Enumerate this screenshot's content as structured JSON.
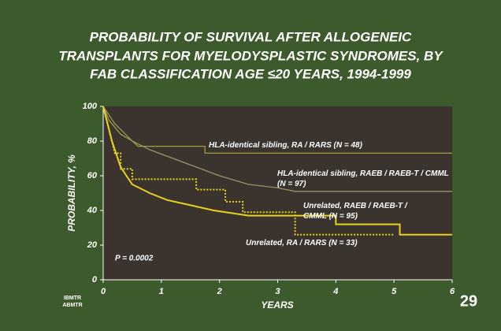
{
  "chart_data": {
    "type": "line",
    "title": [
      "PROBABILITY OF SURVIVAL AFTER ALLOGENEIC",
      "TRANSPLANTS FOR MYELODYSPLASTIC SYNDROMES, BY",
      "FAB CLASSIFICATION AGE ≤20 YEARS, 1994-1999"
    ],
    "x_label": "YEARS",
    "y_label": "PROBABILITY, %",
    "xlim": [
      0,
      6
    ],
    "xticks": [
      0,
      1,
      2,
      3,
      4,
      5,
      6
    ],
    "ylim": [
      0,
      100
    ],
    "yticks": [
      0,
      20,
      40,
      60,
      80,
      100
    ],
    "series": [
      {
        "name": "HLA-identical sibling, RA / RARS (N = 48)",
        "color": "#a39d3c",
        "dash": "solid",
        "x": [
          0,
          0.1,
          0.2,
          0.3,
          0.5,
          0.6,
          1.75,
          1.75,
          6
        ],
        "values": [
          100,
          92,
          88,
          84,
          80,
          77,
          77,
          73,
          73
        ]
      },
      {
        "name": "HLA-identical sibling, RAEB / RAEB-T / CMML (N = 97)",
        "color": "#9a946a",
        "dash": "solid",
        "x": [
          0,
          0.2,
          0.5,
          0.8,
          1.2,
          1.6,
          2.0,
          2.5,
          3.0,
          3.3,
          6
        ],
        "values": [
          100,
          90,
          80,
          75,
          70,
          65,
          60,
          55,
          53,
          51,
          51
        ]
      },
      {
        "name": "Unrelated, RAEB / RAEB-T / CMML (N = 95)",
        "color": "#e8d21c",
        "dash": "solid",
        "x": [
          0,
          0.15,
          0.3,
          0.5,
          0.8,
          1.1,
          1.5,
          1.9,
          2.5,
          4.0,
          4.0,
          5.1,
          5.1,
          6
        ],
        "values": [
          100,
          80,
          65,
          55,
          50,
          46,
          43,
          40,
          37,
          37,
          32,
          32,
          26,
          26
        ]
      },
      {
        "name": "Unrelated, RA / RARS (N = 33)",
        "color": "#e8d21c",
        "dash": "dotted",
        "x": [
          0,
          0.2,
          0.3,
          0.3,
          0.5,
          0.5,
          1.6,
          1.6,
          2.1,
          2.1,
          2.4,
          2.4,
          3.3,
          3.3,
          5.0
        ],
        "values": [
          100,
          73,
          73,
          64,
          64,
          58,
          58,
          52,
          52,
          45,
          45,
          39,
          39,
          26,
          26
        ]
      }
    ],
    "annotation": "P = 0.0002",
    "page_number": "29",
    "logo": [
      "IBMTR",
      "ABMTR"
    ]
  }
}
